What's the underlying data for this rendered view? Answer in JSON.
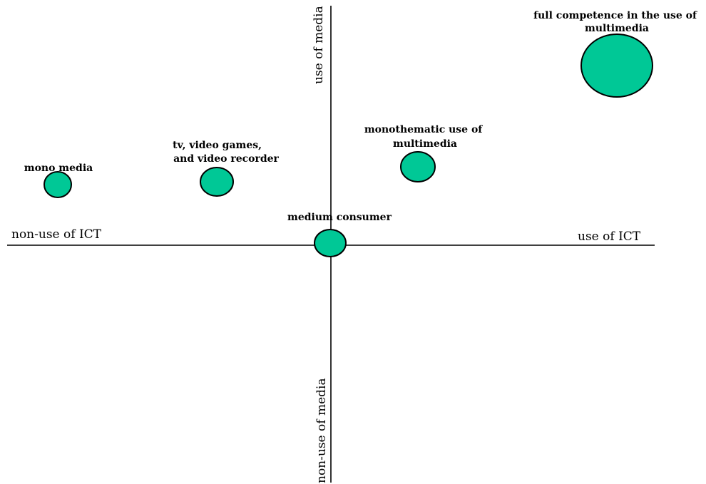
{
  "axes": {
    "x_positive": "use of ICT",
    "x_negative": "non-use of ICT",
    "y_positive": "use of media",
    "y_negative": "non-use of media"
  },
  "bubble_color": "#00c896",
  "categories": [
    {
      "label_lines": [
        "full competence in the use of",
        "multimedia"
      ]
    },
    {
      "label_lines": [
        "monothematic use of",
        "multimedia"
      ]
    },
    {
      "label_lines": [
        "tv, video games,",
        "and video recorder"
      ]
    },
    {
      "label_lines": [
        "mono media"
      ]
    },
    {
      "label_lines": [
        "medium consumer"
      ]
    }
  ]
}
